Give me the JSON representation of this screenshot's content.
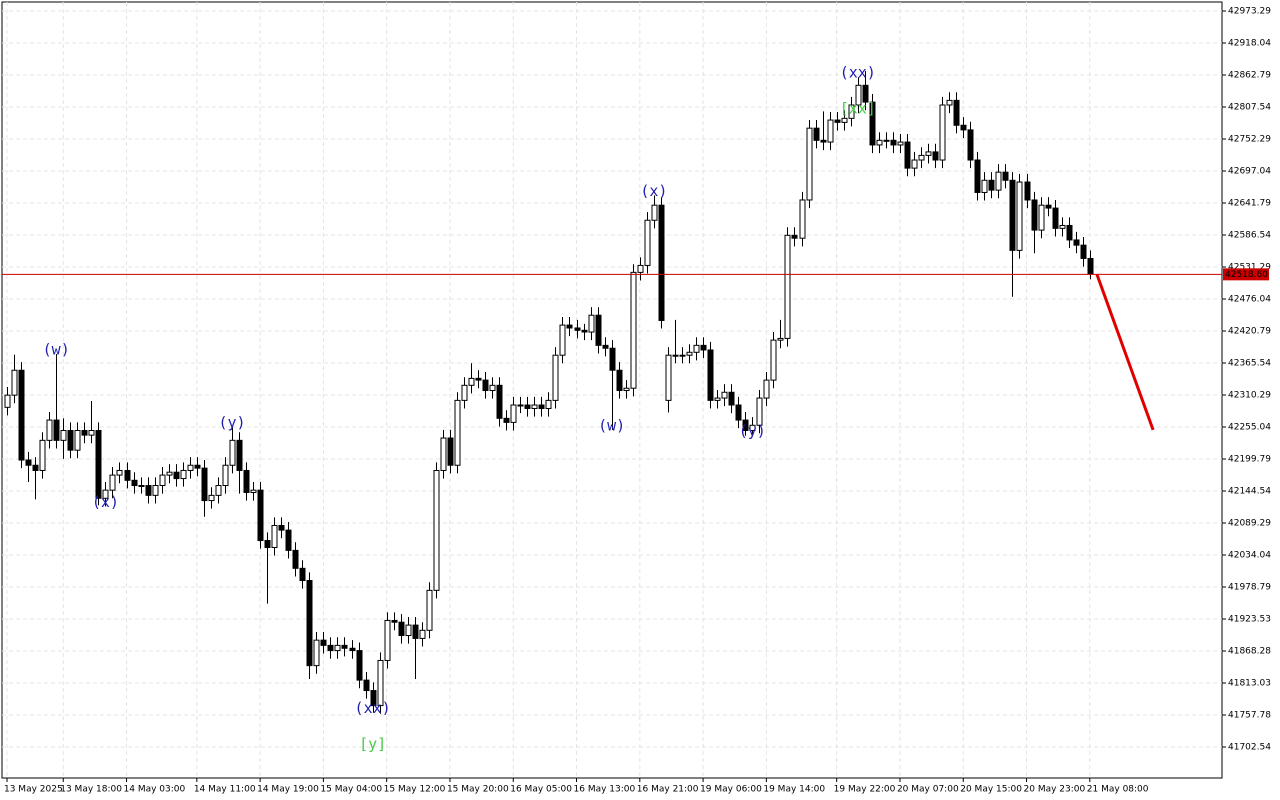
{
  "chart_data": {
    "type": "candlestick",
    "open": [
      42289,
      42310,
      42353,
      42198,
      42189,
      42180,
      42232,
      42267,
      42232,
      42249,
      42215,
      42249,
      42241,
      42249,
      42132,
      42146,
      42172,
      42180,
      42163,
      42154,
      42154,
      42137,
      42154,
      42172,
      42177,
      42166,
      42180,
      42189,
      42184,
      42128,
      42137,
      42154,
      42189,
      42232,
      42180,
      42142,
      42146,
      42059,
      42047,
      42085,
      42077,
      42042,
      42011,
      41990,
      41843,
      41887,
      41878,
      41869,
      41878,
      41873,
      41869,
      41818,
      41800,
      41774,
      41852,
      41921,
      41918,
      41895,
      41913,
      41890,
      41904,
      41973,
      42180,
      42236,
      42189,
      42301,
      42327,
      42339,
      42336,
      42318,
      42327,
      42270,
      42263,
      42293,
      42293,
      42287,
      42293,
      42287,
      42301,
      42379,
      42431,
      42426,
      42422,
      42419,
      42448,
      42396,
      42391,
      42353,
      42318,
      42322,
      42522,
      42534,
      42612,
      42638,
      42301,
      42379,
      42379,
      42379,
      42384,
      42396,
      42388,
      42301,
      42305,
      42315,
      42293,
      42267,
      42249,
      42258,
      42305,
      42336,
      42405,
      42408,
      42586,
      42581,
      42647,
      42771,
      42750,
      42747,
      42785,
      42781,
      42788,
      42811,
      42845,
      42816,
      42742,
      42750,
      42750,
      42742,
      42747,
      42702,
      42716,
      42724,
      42730,
      42716,
      42811,
      42819,
      42776,
      42768,
      42716,
      42660,
      42681,
      42664,
      42695,
      42681,
      42560,
      42678,
      42647,
      42595,
      42638,
      42633,
      42598,
      42603,
      42578,
      42569,
      42546
    ],
    "high": [
      42324,
      42380,
      42367,
      42212,
      42203,
      42246,
      42281,
      42381,
      42270,
      42263,
      42263,
      42263,
      42300,
      42263,
      42160,
      42186,
      42194,
      42194,
      42177,
      42168,
      42168,
      42168,
      42186,
      42191,
      42191,
      42194,
      42203,
      42203,
      42198,
      42151,
      42168,
      42203,
      42255,
      42246,
      42194,
      42160,
      42160,
      42073,
      42099,
      42099,
      42091,
      42056,
      42025,
      42004,
      41901,
      41901,
      41892,
      41892,
      41892,
      41887,
      41883,
      41832,
      41814,
      41866,
      41935,
      41935,
      41932,
      41927,
      41927,
      41918,
      41987,
      42194,
      42250,
      42250,
      42315,
      42341,
      42365,
      42353,
      42350,
      42341,
      42341,
      42284,
      42307,
      42307,
      42307,
      42307,
      42307,
      42315,
      42393,
      42445,
      42445,
      42440,
      42433,
      42462,
      42462,
      42410,
      42405,
      42367,
      42336,
      42536,
      42548,
      42626,
      42655,
      42652,
      42393,
      42440,
      42393,
      42398,
      42410,
      42410,
      42402,
      42319,
      42329,
      42329,
      42307,
      42281,
      42272,
      42319,
      42350,
      42419,
      42440,
      42600,
      42600,
      42661,
      42785,
      42785,
      42800,
      42799,
      42799,
      42802,
      42825,
      42859,
      42870,
      42830,
      42764,
      42764,
      42764,
      42761,
      42761,
      42730,
      42738,
      42744,
      42744,
      42825,
      42833,
      42833,
      42790,
      42782,
      42730,
      42695,
      42695,
      42709,
      42709,
      42695,
      42692,
      42692,
      42661,
      42652,
      42652,
      42647,
      42617,
      42617,
      42592,
      42583,
      42560
    ],
    "low": [
      42275,
      42296,
      42184,
      42160,
      42130,
      42166,
      42218,
      42218,
      42200,
      42201,
      42201,
      42227,
      42227,
      42120,
      42118,
      42132,
      42158,
      42149,
      42140,
      42140,
      42123,
      42123,
      42140,
      42158,
      42152,
      42152,
      42166,
      42170,
      42100,
      42114,
      42123,
      42140,
      42175,
      42140,
      42128,
      42128,
      42045,
      41950,
      42033,
      42063,
      42028,
      41997,
      41976,
      41820,
      41829,
      41864,
      41855,
      41855,
      41859,
      41855,
      41804,
      41786,
      41762,
      41760,
      41838,
      41904,
      41881,
      41881,
      41820,
      41876,
      41890,
      41959,
      42166,
      42175,
      42175,
      42287,
      42313,
      42322,
      42304,
      42304,
      42256,
      42249,
      42249,
      42279,
      42273,
      42273,
      42273,
      42273,
      42287,
      42365,
      42412,
      42408,
      42405,
      42405,
      42382,
      42377,
      42250,
      42304,
      42304,
      42308,
      42508,
      42520,
      42598,
      42425,
      42280,
      42365,
      42365,
      42365,
      42370,
      42374,
      42287,
      42287,
      42291,
      42279,
      42253,
      42240,
      42240,
      42244,
      42291,
      42322,
      42391,
      42394,
      42567,
      42567,
      42633,
      42736,
      42733,
      42733,
      42767,
      42767,
      42774,
      42797,
      42802,
      42728,
      42728,
      42736,
      42728,
      42728,
      42688,
      42688,
      42702,
      42710,
      42702,
      42702,
      42797,
      42762,
      42754,
      42702,
      42646,
      42646,
      42650,
      42650,
      42667,
      42480,
      42546,
      42633,
      42555,
      42581,
      42619,
      42584,
      42584,
      42564,
      42555,
      42532,
      42510
    ],
    "close": [
      42310,
      42353,
      42198,
      42189,
      42180,
      42232,
      42267,
      42232,
      42249,
      42215,
      42249,
      42241,
      42249,
      42132,
      42146,
      42172,
      42180,
      42163,
      42154,
      42154,
      42137,
      42154,
      42172,
      42177,
      42166,
      42180,
      42189,
      42184,
      42128,
      42137,
      42154,
      42189,
      42232,
      42180,
      42142,
      42146,
      42059,
      42047,
      42085,
      42077,
      42042,
      42011,
      41990,
      41843,
      41887,
      41878,
      41869,
      41878,
      41873,
      41869,
      41818,
      41800,
      41774,
      41852,
      41921,
      41918,
      41895,
      41913,
      41890,
      41904,
      41973,
      42180,
      42236,
      42189,
      42301,
      42327,
      42339,
      42336,
      42318,
      42327,
      42270,
      42263,
      42293,
      42293,
      42287,
      42293,
      42287,
      42301,
      42379,
      42431,
      42426,
      42422,
      42419,
      42448,
      42396,
      42391,
      42353,
      42318,
      42322,
      42522,
      42534,
      42612,
      42638,
      42439,
      42379,
      42379,
      42379,
      42384,
      42396,
      42388,
      42301,
      42305,
      42315,
      42293,
      42267,
      42249,
      42258,
      42305,
      42336,
      42405,
      42408,
      42586,
      42581,
      42647,
      42771,
      42750,
      42747,
      42785,
      42781,
      42788,
      42811,
      42845,
      42816,
      42742,
      42750,
      42750,
      42742,
      42747,
      42702,
      42716,
      42724,
      42730,
      42716,
      42811,
      42819,
      42776,
      42768,
      42716,
      42660,
      42681,
      42664,
      42695,
      42681,
      42560,
      42678,
      42647,
      42595,
      42638,
      42633,
      42598,
      42603,
      42578,
      42569,
      42546,
      42519
    ],
    "up_color": "#ffffff",
    "down_color": "#000000",
    "xlim": [
      -0.71,
      172.8
    ],
    "xticks": [
      {
        "value": 0,
        "label": "13 May 2025"
      },
      {
        "value": 8,
        "label": "13 May 18:00"
      },
      {
        "value": 17,
        "label": "14 May 03:00"
      },
      {
        "value": 27,
        "label": "14 May 11:00"
      },
      {
        "value": 36,
        "label": "14 May 19:00"
      },
      {
        "value": 45,
        "label": "15 May 04:00"
      },
      {
        "value": 54,
        "label": "15 May 12:00"
      },
      {
        "value": 63,
        "label": "15 May 20:00"
      },
      {
        "value": 72,
        "label": "16 May 05:00"
      },
      {
        "value": 81,
        "label": "16 May 13:00"
      },
      {
        "value": 90,
        "label": "16 May 21:00"
      },
      {
        "value": 99,
        "label": "19 May 06:00"
      },
      {
        "value": 108,
        "label": "19 May 14:00"
      },
      {
        "value": 118,
        "label": "19 May 22:00"
      },
      {
        "value": 127,
        "label": "20 May 07:00"
      },
      {
        "value": 136,
        "label": "20 May 15:00"
      },
      {
        "value": 145,
        "label": "20 May 23:00"
      },
      {
        "value": 154,
        "label": "21 May 08:00"
      }
    ],
    "ylim": [
      41649.0,
      42988.83
    ],
    "yticks": [
      42973.29,
      42918.04,
      42862.79,
      42807.54,
      42752.29,
      42697.04,
      42641.79,
      42586.54,
      42531.29,
      42476.04,
      42420.79,
      42365.54,
      42310.29,
      42255.04,
      42199.79,
      42144.54,
      42089.29,
      42034.04,
      41978.79,
      41923.53,
      41868.28,
      41813.03,
      41757.78,
      41702.54
    ],
    "grid": true,
    "last_price": {
      "value": 42518.6,
      "label": "42518.60",
      "color": "#cc0000"
    },
    "forecast": {
      "x": [
        155,
        163
      ],
      "y": [
        42519,
        42250
      ],
      "color": "#e00000"
    },
    "annotations": [
      {
        "text": "(w)",
        "bar": 7,
        "position": "above",
        "color": "#2020b0"
      },
      {
        "text": "(x)",
        "bar": 14,
        "position": "below",
        "color": "#2020b0"
      },
      {
        "text": "(y)",
        "bar": 32,
        "position": "above",
        "color": "#2020b0"
      },
      {
        "text": "(xx)",
        "bar": 52,
        "position": "below",
        "color": "#2020b0"
      },
      {
        "text": "[y]",
        "bar": 52,
        "position": "below",
        "color": "#44cc44"
      },
      {
        "text": "(w)",
        "bar": 86,
        "position": "below",
        "color": "#2020b0"
      },
      {
        "text": "(x)",
        "bar": 92,
        "position": "above",
        "color": "#2020b0"
      },
      {
        "text": "(y)",
        "bar": 106,
        "position": "below",
        "color": "#2020b0"
      },
      {
        "text": "(xx)",
        "bar": 121,
        "position": "above",
        "color": "#2020b0"
      },
      {
        "text": "[xx]",
        "bar": 121,
        "position": "above",
        "color": "#44cc44"
      }
    ]
  }
}
